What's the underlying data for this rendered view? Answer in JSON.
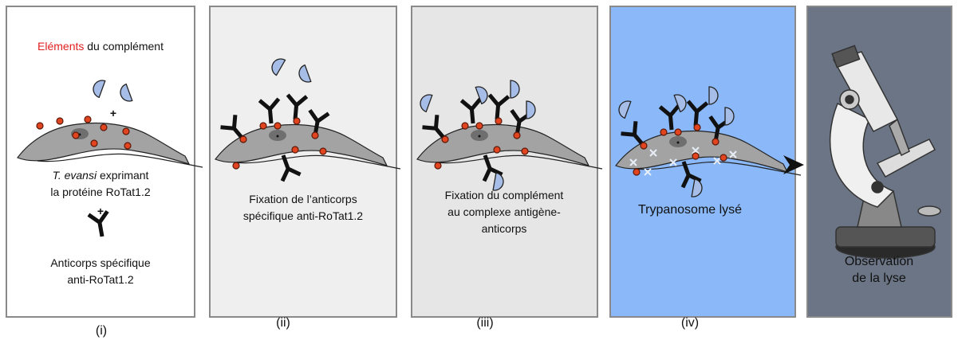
{
  "panels": [
    {
      "label": "(i)",
      "title_highlight": "Eléments",
      "title_rest": " du complément",
      "plus": "+",
      "organism": "T. evansi",
      "organism_rest": " exprimant",
      "protein": "la protéine RoTat1.2",
      "plus2": "+",
      "antibody_lines": [
        "Anticorps spécifique",
        "anti-RoTat1.2"
      ]
    },
    {
      "label": "(ii)",
      "lines": [
        "Fixation de l’anticorps",
        "spécifique anti-RoTat1.2"
      ]
    },
    {
      "label": "(iii)",
      "lines": [
        "Fixation du complément",
        "au complexe antigène-",
        "anticorps"
      ]
    },
    {
      "label": "(iv)",
      "lines": [
        "Trypanosome lysé"
      ]
    },
    {
      "lines": [
        "Observation",
        "de la lyse"
      ]
    }
  ]
}
